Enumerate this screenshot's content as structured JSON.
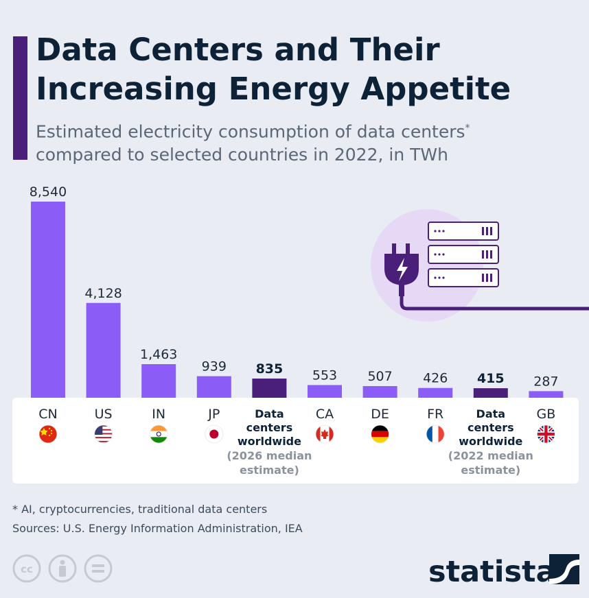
{
  "header": {
    "title": "Data Centers and Their Increasing Energy Appetite",
    "subtitle": "Estimated electricity consumption of data centers",
    "subtitle_mark": "*",
    "subtitle_line2": "compared to selected countries in 2022, in TWh"
  },
  "chart_data": {
    "type": "bar",
    "title": "Data Centers and Their Increasing Energy Appetite",
    "subtitle": "Estimated electricity consumption of data centers* compared to selected countries in 2022, in TWh",
    "unit": "TWh",
    "categories": [
      "CN",
      "US",
      "IN",
      "JP",
      "Data centers worldwide (2026 median estimate)",
      "CA",
      "DE",
      "FR",
      "Data centers worldwide (2022 median estimate)",
      "GB"
    ],
    "values": [
      8540,
      4128,
      1463,
      939,
      835,
      553,
      507,
      426,
      415,
      287
    ],
    "value_labels": [
      "8,540",
      "4,128",
      "1,463",
      "939",
      "835",
      "553",
      "507",
      "426",
      "415",
      "287"
    ],
    "highlight": [
      false,
      false,
      false,
      false,
      true,
      false,
      false,
      false,
      true,
      false
    ],
    "bars": [
      {
        "code": "CN",
        "label": [
          "CN"
        ],
        "note": [],
        "flag": "china-flag-icon"
      },
      {
        "code": "US",
        "label": [
          "US"
        ],
        "note": [],
        "flag": "usa-flag-icon"
      },
      {
        "code": "IN",
        "label": [
          "IN"
        ],
        "note": [],
        "flag": "india-flag-icon"
      },
      {
        "code": "JP",
        "label": [
          "JP"
        ],
        "note": [],
        "flag": "japan-flag-icon"
      },
      {
        "code": "DC2026",
        "label": [
          "Data",
          "centers",
          "worldwide"
        ],
        "note": [
          "(2026 median",
          "estimate)"
        ],
        "flag": null
      },
      {
        "code": "CA",
        "label": [
          "CA"
        ],
        "note": [],
        "flag": "canada-flag-icon"
      },
      {
        "code": "DE",
        "label": [
          "DE"
        ],
        "note": [],
        "flag": "germany-flag-icon"
      },
      {
        "code": "FR",
        "label": [
          "FR"
        ],
        "note": [],
        "flag": "france-flag-icon"
      },
      {
        "code": "DC2022",
        "label": [
          "Data",
          "centers",
          "worldwide"
        ],
        "note": [
          "(2022 median",
          "estimate)"
        ],
        "flag": null
      },
      {
        "code": "GB",
        "label": [
          "GB"
        ],
        "note": [],
        "flag": "uk-flag-icon"
      }
    ],
    "ylim": [
      0,
      8540
    ],
    "grid": false,
    "legend": "none"
  },
  "footer": {
    "footnote": "* AI, cryptocurrencies, traditional data centers",
    "source": "Sources: U.S. Energy Information Administration, IEA",
    "brand": "statista"
  },
  "colors": {
    "bar": "#8b5cf6",
    "highlight": "#4a1f7a",
    "accent": "#4a1f7a",
    "title": "#0d2137",
    "note": "#8a929c"
  }
}
